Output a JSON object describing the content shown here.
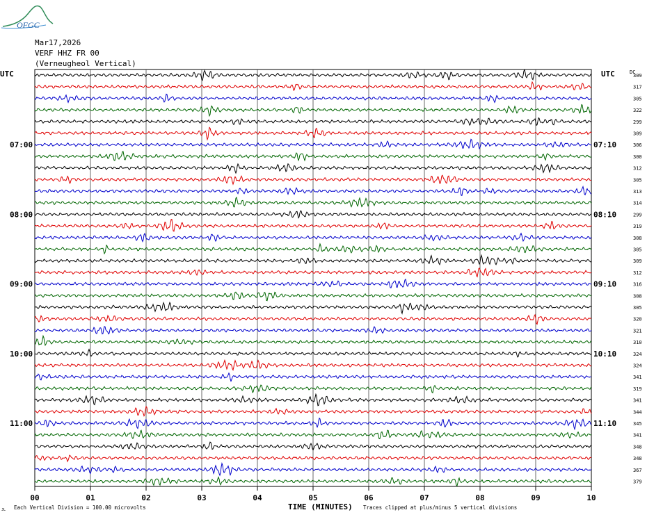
{
  "header": {
    "logo_text": "OFGC",
    "date": "Mar17,2026",
    "station": "VERF HHZ FR 00",
    "location": "(Verneugheol Vertical)"
  },
  "left_axis_label": "UTC",
  "right_axis_label": "UTC",
  "dc_label": "DC",
  "footer": {
    "scale_note": "Each Vertical Division =  100.00 microvolts",
    "x_axis_title": "TIME (MINUTES)",
    "clip_note": "Traces clipped at plus/minus 5 vertical divisions",
    "corner_mark": "JL"
  },
  "chart_data": {
    "type": "line",
    "title": "",
    "xlabel": "TIME (MINUTES)",
    "ylabel": "UTC",
    "x_ticks": [
      "00",
      "01",
      "02",
      "03",
      "04",
      "05",
      "06",
      "07",
      "08",
      "09",
      "10"
    ],
    "xlim": [
      0,
      10
    ],
    "trace_count": 36,
    "minutes_per_trace": 10,
    "series_colors": [
      "#000000",
      "#e00000",
      "#0000cc",
      "#006600"
    ],
    "left_time_labels": [
      {
        "trace": 6,
        "label": "07:00"
      },
      {
        "trace": 12,
        "label": "08:00"
      },
      {
        "trace": 18,
        "label": "09:00"
      },
      {
        "trace": 24,
        "label": "10:00"
      },
      {
        "trace": 30,
        "label": "11:00"
      }
    ],
    "right_time_labels": [
      {
        "trace": 6,
        "label": "07:10"
      },
      {
        "trace": 12,
        "label": "08:10"
      },
      {
        "trace": 18,
        "label": "09:10"
      },
      {
        "trace": 24,
        "label": "10:10"
      },
      {
        "trace": 30,
        "label": "11:10"
      }
    ],
    "dc_offsets": [
      309,
      317,
      305,
      322,
      299,
      309,
      306,
      300,
      312,
      305,
      313,
      314,
      299,
      319,
      308,
      305,
      309,
      312,
      316,
      308,
      305,
      320,
      321,
      310,
      324,
      324,
      341,
      319,
      341,
      344,
      345,
      341,
      348,
      348,
      367,
      379
    ],
    "grid": true
  }
}
